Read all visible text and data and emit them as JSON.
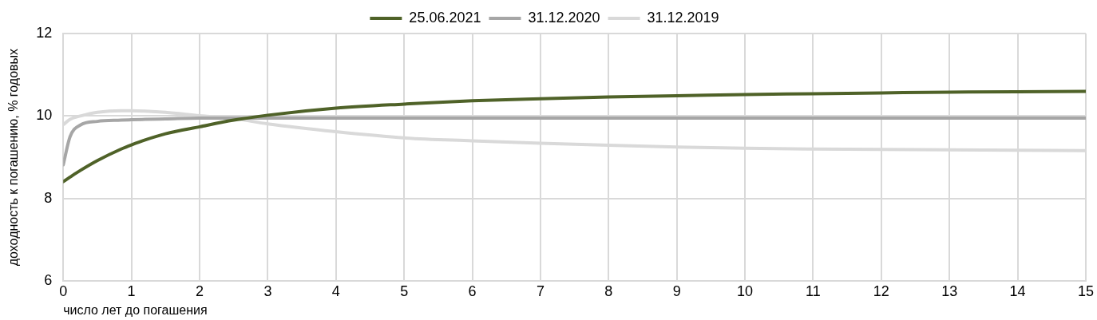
{
  "chart_data": {
    "type": "line",
    "xlabel": "число лет до погашения",
    "ylabel": "доходность к погашению, % годовых",
    "x": [
      0,
      0.1,
      0.25,
      0.5,
      0.85,
      1,
      1.2,
      1.5,
      2,
      2.5,
      3,
      4,
      5,
      6,
      7,
      8,
      9,
      10,
      11,
      12,
      13,
      14,
      15
    ],
    "series": [
      {
        "name": "25.06.2021",
        "color": "#4f6228",
        "values": [
          8.41,
          8.52,
          8.68,
          8.92,
          9.2,
          9.3,
          9.42,
          9.57,
          9.74,
          9.9,
          10.02,
          10.19,
          10.29,
          10.37,
          10.42,
          10.46,
          10.49,
          10.52,
          10.54,
          10.56,
          10.58,
          10.59,
          10.6
        ]
      },
      {
        "name": "31.12.2020",
        "color": "#a6a6a6",
        "values": [
          8.82,
          9.5,
          9.78,
          9.87,
          9.9,
          9.91,
          9.92,
          9.93,
          9.95,
          9.95,
          9.95,
          9.95,
          9.95,
          9.95,
          9.95,
          9.95,
          9.95,
          9.95,
          9.95,
          9.95,
          9.95,
          9.95,
          9.95
        ]
      },
      {
        "name": "31.12.2019",
        "color": "#d9d9d9",
        "values": [
          9.79,
          9.92,
          10.0,
          10.09,
          10.13,
          10.13,
          10.12,
          10.09,
          10.01,
          9.94,
          9.81,
          9.62,
          9.47,
          9.4,
          9.34,
          9.29,
          9.25,
          9.22,
          9.2,
          9.19,
          9.18,
          9.17,
          9.16
        ]
      }
    ],
    "xlim": [
      0,
      15
    ],
    "xticks": [
      0,
      1,
      2,
      3,
      4,
      5,
      6,
      7,
      8,
      9,
      10,
      11,
      12,
      13,
      14,
      15
    ],
    "ylim": [
      6,
      12
    ],
    "yticks": [
      6,
      8,
      10,
      12
    ],
    "grid": true,
    "legend": "top",
    "marker": "none",
    "line_style": "solid"
  }
}
